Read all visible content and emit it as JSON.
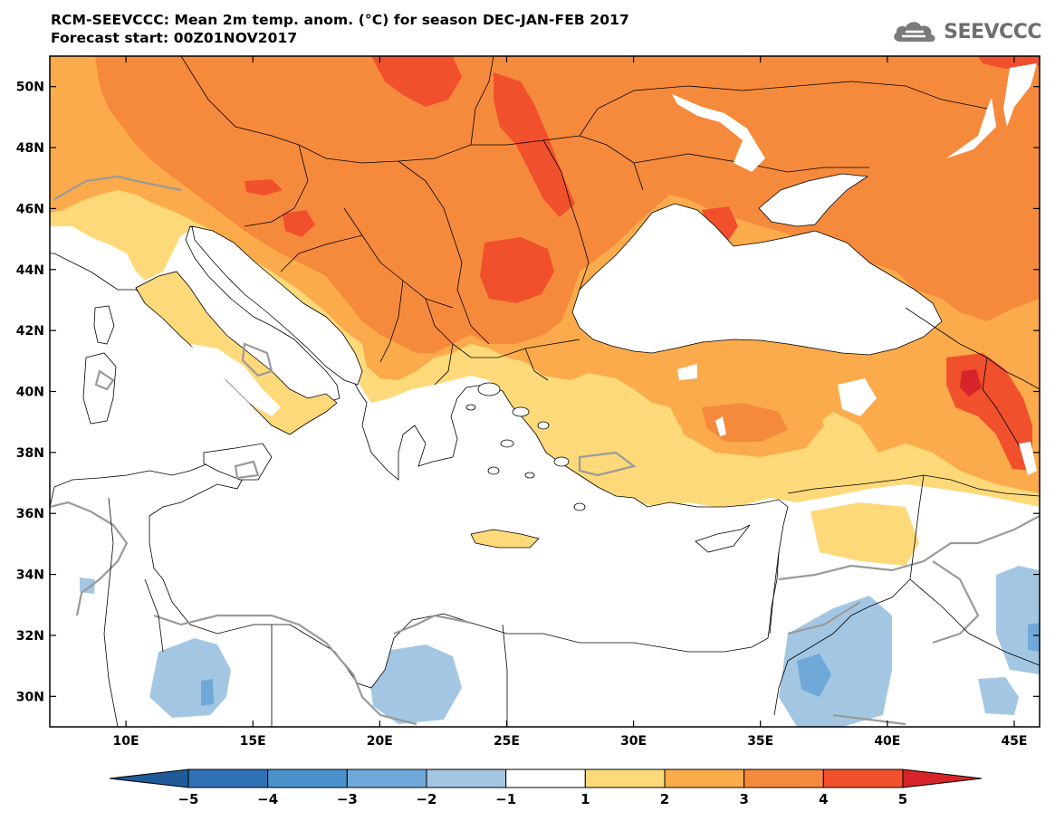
{
  "header": {
    "title_line1": "RCM-SEEVCCC: Mean 2m temp. anom. (°C) for season DEC-JAN-FEB 2017",
    "title_line2": "Forecast start: 00Z01NOV2017"
  },
  "logo": {
    "text": "SEEVCCC",
    "icon": "cloud-icon"
  },
  "map": {
    "lon_range": [
      7,
      46
    ],
    "lat_range": [
      29,
      51
    ],
    "lon_ticks": [
      "10E",
      "15E",
      "20E",
      "25E",
      "30E",
      "35E",
      "40E",
      "45E"
    ],
    "lat_ticks": [
      "50N",
      "48N",
      "46N",
      "44N",
      "42N",
      "40N",
      "38N",
      "36N",
      "34N",
      "32N",
      "30N"
    ]
  },
  "colorbar": {
    "labels": [
      "−5",
      "−4",
      "−3",
      "−2",
      "−1",
      "1",
      "2",
      "3",
      "4",
      "5"
    ],
    "colors": [
      "#1e5a98",
      "#2f71b5",
      "#4b91cc",
      "#6fa9d9",
      "#a3c7e3",
      "#ffffff",
      "#fdd97a",
      "#fbab4b",
      "#f68a3c",
      "#f1502c",
      "#d7232a"
    ]
  }
}
